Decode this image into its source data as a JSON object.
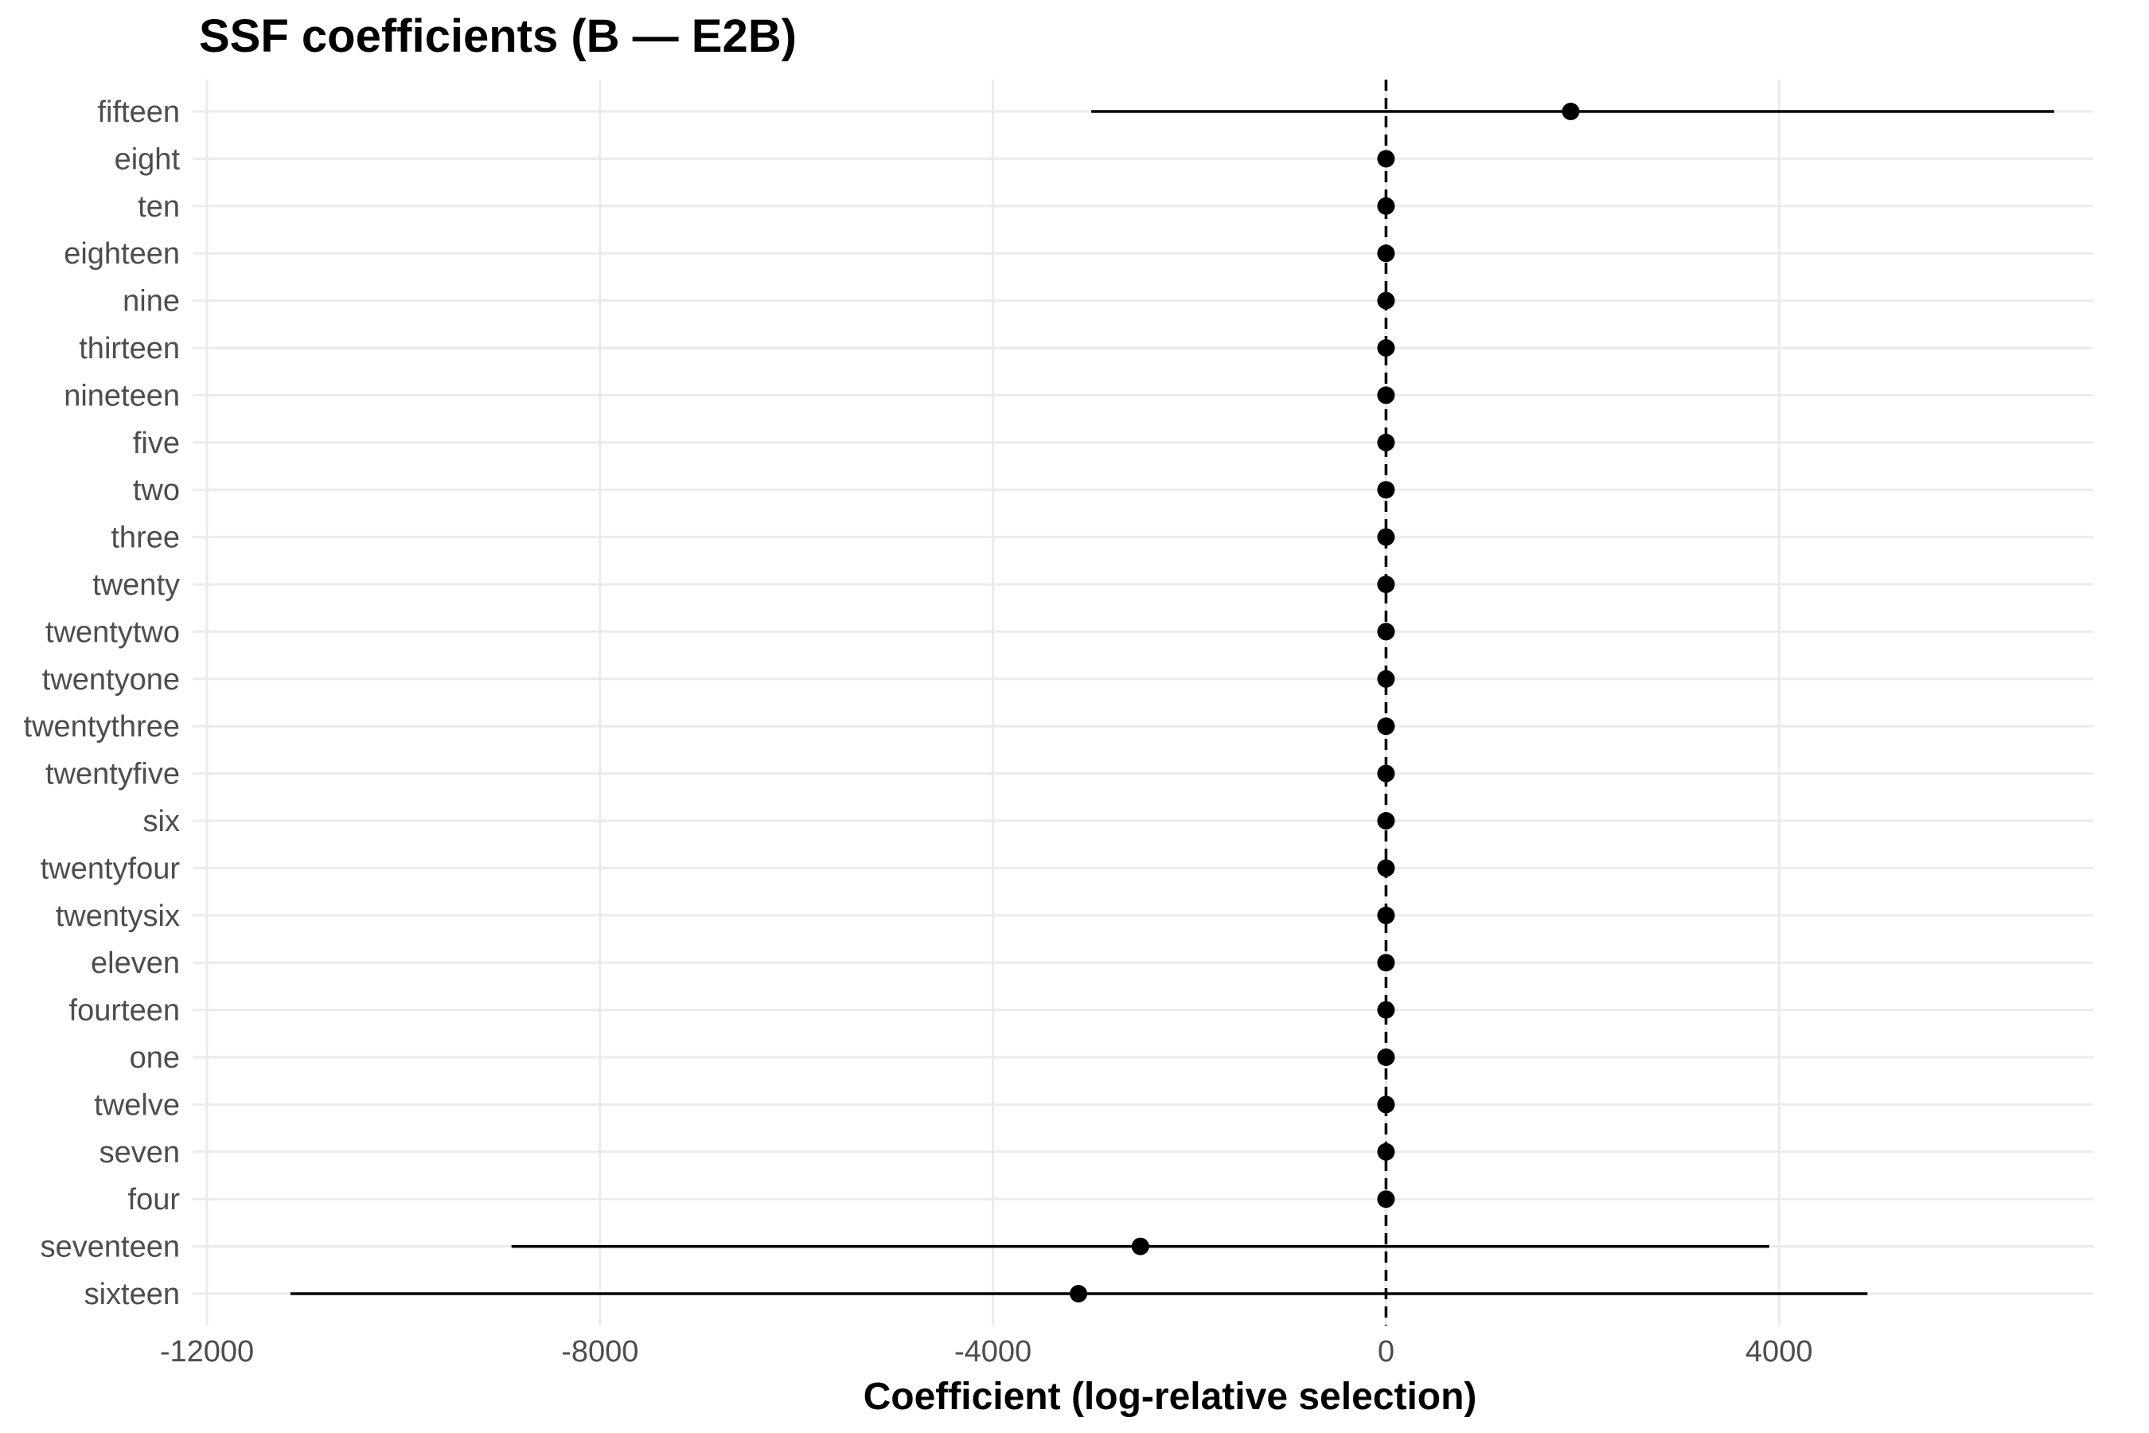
{
  "chart_data": {
    "type": "forest",
    "title": "SSF coefficients (B — E2B)",
    "xlabel": "Coefficient (log-relative selection)",
    "ylabel": "",
    "xlim": [
      -12000,
      8800
    ],
    "xticks": [
      -12000,
      -8000,
      -4000,
      0,
      4000
    ],
    "xtick_labels": [
      "-12000",
      "-8000",
      "-4000",
      "0",
      "4000"
    ],
    "reference_line": 0,
    "grid": true,
    "terms": [
      {
        "term": "fifteen",
        "estimate": 1880,
        "lower": -3000,
        "upper": 6800
      },
      {
        "term": "eight",
        "estimate": 0,
        "lower": 0,
        "upper": 0
      },
      {
        "term": "ten",
        "estimate": 0,
        "lower": 0,
        "upper": 0
      },
      {
        "term": "eighteen",
        "estimate": 0,
        "lower": 0,
        "upper": 0
      },
      {
        "term": "nine",
        "estimate": 0,
        "lower": 0,
        "upper": 0
      },
      {
        "term": "thirteen",
        "estimate": 0,
        "lower": 0,
        "upper": 0
      },
      {
        "term": "nineteen",
        "estimate": 0,
        "lower": 0,
        "upper": 0
      },
      {
        "term": "five",
        "estimate": 0,
        "lower": 0,
        "upper": 0
      },
      {
        "term": "two",
        "estimate": 0,
        "lower": 0,
        "upper": 0
      },
      {
        "term": "three",
        "estimate": 0,
        "lower": 0,
        "upper": 0
      },
      {
        "term": "twenty",
        "estimate": 0,
        "lower": 0,
        "upper": 0
      },
      {
        "term": "twentytwo",
        "estimate": 0,
        "lower": 0,
        "upper": 0
      },
      {
        "term": "twentyone",
        "estimate": 0,
        "lower": 0,
        "upper": 0
      },
      {
        "term": "twentythree",
        "estimate": 0,
        "lower": 0,
        "upper": 0
      },
      {
        "term": "twentyfive",
        "estimate": 0,
        "lower": 0,
        "upper": 0
      },
      {
        "term": "six",
        "estimate": 0,
        "lower": 0,
        "upper": 0
      },
      {
        "term": "twentyfour",
        "estimate": 0,
        "lower": 0,
        "upper": 0
      },
      {
        "term": "twentysix",
        "estimate": 0,
        "lower": 0,
        "upper": 0
      },
      {
        "term": "eleven",
        "estimate": 0,
        "lower": 0,
        "upper": 0
      },
      {
        "term": "fourteen",
        "estimate": 0,
        "lower": 0,
        "upper": 0
      },
      {
        "term": "one",
        "estimate": 0,
        "lower": 0,
        "upper": 0
      },
      {
        "term": "twelve",
        "estimate": 0,
        "lower": 0,
        "upper": 0
      },
      {
        "term": "seven",
        "estimate": 0,
        "lower": 0,
        "upper": 0
      },
      {
        "term": "four",
        "estimate": 0,
        "lower": 0,
        "upper": 0
      },
      {
        "term": "seventeen",
        "estimate": -2500,
        "lower": -8900,
        "upper": 3900
      },
      {
        "term": "sixteen",
        "estimate": -3130,
        "lower": -11150,
        "upper": 4900
      }
    ],
    "colors": {
      "point": "#000000",
      "interval": "#000000",
      "grid": "#ebebeb",
      "reference": "#000000",
      "tick_text": "#4d4d4d"
    }
  }
}
